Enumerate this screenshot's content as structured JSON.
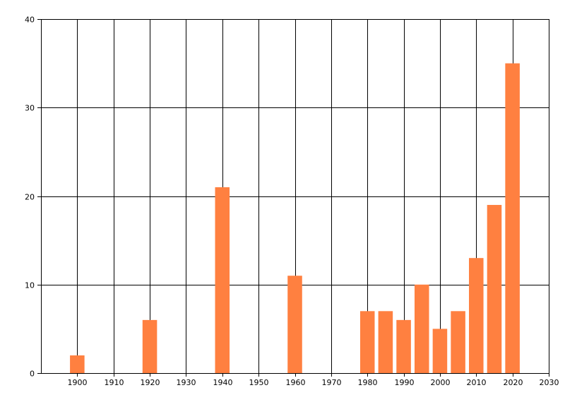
{
  "chart_data": {
    "type": "bar",
    "title": "",
    "xlabel": "",
    "ylabel": "",
    "xlim": [
      1890,
      2030
    ],
    "ylim": [
      0,
      40
    ],
    "x_ticks": [
      1900,
      1910,
      1920,
      1930,
      1940,
      1950,
      1960,
      1970,
      1980,
      1990,
      2000,
      2010,
      2020,
      2030
    ],
    "y_ticks": [
      0,
      10,
      20,
      30,
      40
    ],
    "grid": true,
    "legend": "none",
    "bar_width_years": 4,
    "bar_color": "#FF8040",
    "x": [
      1900,
      1920,
      1940,
      1960,
      1980,
      1985,
      1990,
      1995,
      2000,
      2005,
      2010,
      2015,
      2020
    ],
    "values": [
      2,
      6,
      21,
      11,
      7,
      7,
      6,
      10,
      5,
      7,
      13,
      19,
      35
    ]
  }
}
